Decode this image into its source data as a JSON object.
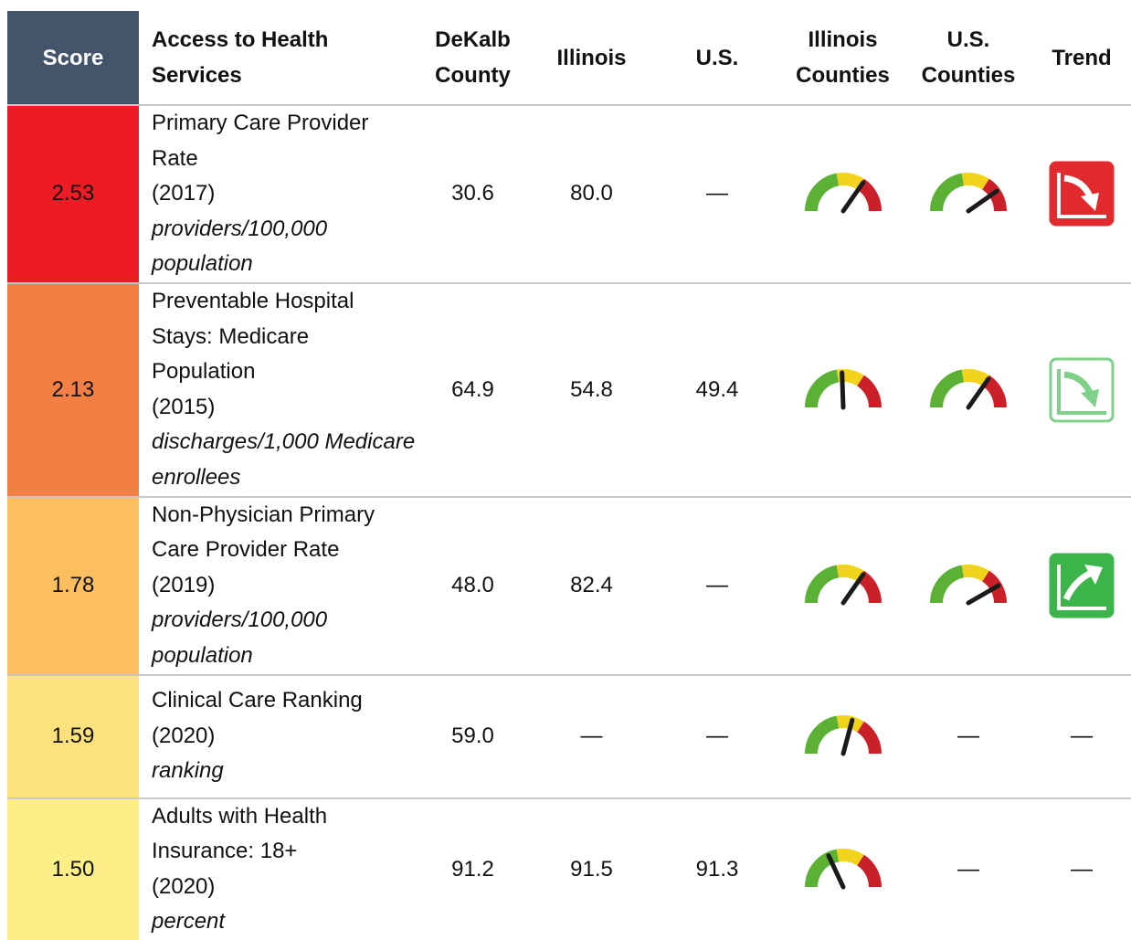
{
  "header": {
    "score": "Score",
    "name": "Access to Health Services",
    "dekalb": "DeKalb County",
    "illinois": "Illinois",
    "us": "U.S.",
    "il_counties": "Illinois Counties",
    "us_counties": "U.S. Counties",
    "trend": "Trend"
  },
  "rows": [
    {
      "score": "2.53",
      "color": "#ed1c24",
      "name": "Primary Care Provider Rate",
      "year": "(2017)",
      "unit": "providers/100,000 population",
      "dekalb": "30.6",
      "illinois": "80.0",
      "us": "—"
    },
    {
      "score": "2.13",
      "color": "#f47f45",
      "name": "Preventable Hospital Stays: Medicare Population",
      "year": "(2015)",
      "unit": "discharges/1,000 Medicare enrollees",
      "dekalb": "64.9",
      "illinois": "54.8",
      "us": "49.4"
    },
    {
      "score": "1.78",
      "color": "#fdbe5f",
      "name": "Non-Physician Primary Care Provider Rate",
      "year": "(2019)",
      "unit": "providers/100,000 population",
      "dekalb": "48.0",
      "illinois": "82.4",
      "us": "—"
    },
    {
      "score": "1.59",
      "color": "#fde17c",
      "name": "Clinical Care Ranking",
      "year": "(2020)",
      "unit": "ranking",
      "dekalb": "59.0",
      "illinois": "—",
      "us": "—",
      "us_counties": "—",
      "trend": "—"
    },
    {
      "score": "1.50",
      "color": "#fdef87",
      "name": "Adults with Health Insurance: 18+",
      "year": "(2020)",
      "unit": "percent",
      "dekalb": "91.2",
      "illinois": "91.5",
      "us": "91.3",
      "us_counties": "—",
      "trend": "—"
    }
  ]
}
